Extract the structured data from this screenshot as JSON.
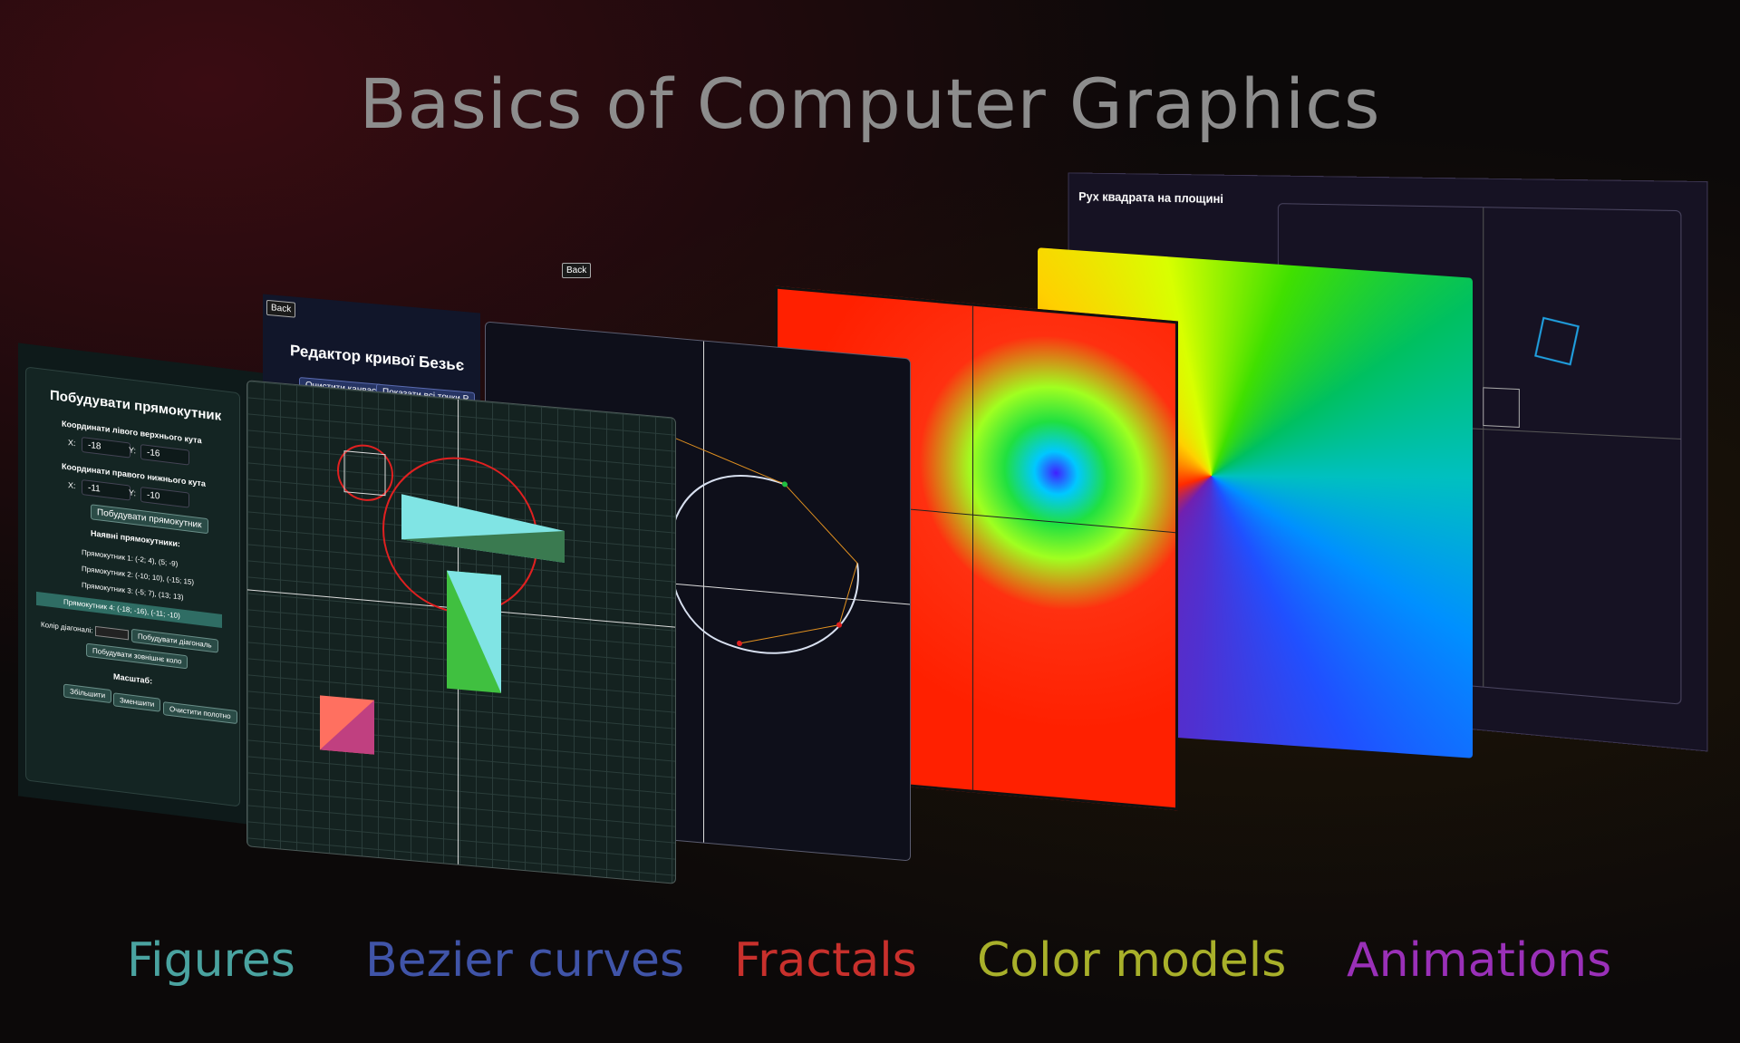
{
  "title": "Basics of Computer Graphics",
  "labels": [
    {
      "text": "Figures",
      "color": "#4aa3a0"
    },
    {
      "text": "Bezier curves",
      "color": "#4054a8"
    },
    {
      "text": "Fractals",
      "color": "#c8302c"
    },
    {
      "text": "Color models",
      "color": "#a8b02a"
    },
    {
      "text": "Animations",
      "color": "#9a30b8"
    }
  ],
  "figures_panel": {
    "heading": "Побудувати прямокутник",
    "top_left_label": "Координати лівого верхнього кута",
    "x_label": "X:",
    "y_label": "Y:",
    "top_left_x": "-18",
    "top_left_y": "-16",
    "bottom_right_label": "Координати правого нижнього кута",
    "bottom_right_x": "-11",
    "bottom_right_y": "-10",
    "build_button": "Побудувати прямокутник",
    "existing_label": "Наявні прямокутники:",
    "rects": [
      "Прямокутник 1: (-2; 4), (5; -9)",
      "Прямокутник 2: (-10; 10), (-15; 15)",
      "Прямокутник 3: (-5; 7), (13; 13)",
      "Прямокутник 4: (-18; -16), (-11; -10)"
    ],
    "diag_color_label": "Колір діагоналі:",
    "build_diag_button": "Побудувати діагональ",
    "build_circle_button": "Побудувати зовнішнє коло",
    "scale_label": "Масштаб:",
    "zoom_in": "Збільшити",
    "zoom_out": "Зменшити",
    "clear": "Очистити полотно"
  },
  "bezier_panel": {
    "back": "Back",
    "heading": "Редактор кривої Безьє",
    "clear_canvas": "Очистити канвас",
    "show_points": "Показати всі точки Р"
  },
  "top_back": "Back",
  "animation_panel": {
    "heading": "Рух квадрата на площині"
  }
}
